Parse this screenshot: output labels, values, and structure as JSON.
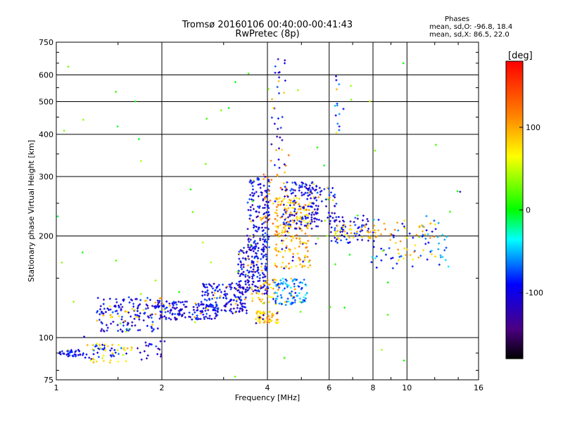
{
  "header": {
    "title_line1": "Tromsø 20160106 00:40:00-00:41:43",
    "title_line2": "RwPretec (8p)"
  },
  "stats": {
    "heading": "Phases",
    "line1": "mean, sd,O: -96.8, 18.4",
    "line2": "mean, sd,X: 86.5, 22.0"
  },
  "chart_data": {
    "type": "scatter",
    "x_scale": "log",
    "y_scale": "log",
    "xlabel": "Frequency [MHz]",
    "ylabel": "Stationary phase Virtual Height [km]",
    "xlim": [
      1,
      16
    ],
    "ylim": [
      75,
      750
    ],
    "x_ticks": [
      1,
      2,
      4,
      6,
      8,
      10,
      16
    ],
    "y_ticks": [
      75,
      100,
      200,
      300,
      400,
      500,
      600,
      750
    ],
    "grid": true,
    "colorbar": {
      "label": "[deg]",
      "range": [
        -180,
        180
      ],
      "ticks": [
        100,
        0,
        -100
      ],
      "colormap": "rainbow"
    },
    "clusters": [
      {
        "x": [
          1.0,
          1.2
        ],
        "y": [
          88,
          92
        ],
        "phase": -100,
        "n": 40
      },
      {
        "x": [
          1.2,
          1.55
        ],
        "y": [
          86,
          96
        ],
        "phase": -95,
        "n": 30
      },
      {
        "x": [
          1.25,
          1.65
        ],
        "y": [
          84,
          96
        ],
        "phase": 75,
        "n": 35
      },
      {
        "x": [
          1.7,
          2.05
        ],
        "y": [
          86,
          98
        ],
        "phase": -100,
        "n": 20
      },
      {
        "x": [
          1.3,
          2.0
        ],
        "y": [
          104,
          132
        ],
        "phase": -100,
        "n": 140
      },
      {
        "x": [
          1.4,
          1.8
        ],
        "y": [
          110,
          122
        ],
        "phase": 80,
        "n": 12
      },
      {
        "x": [
          1.9,
          2.9
        ],
        "y": [
          113,
          128
        ],
        "phase": -100,
        "n": 150
      },
      {
        "x": [
          2.6,
          3.5
        ],
        "y": [
          118,
          145
        ],
        "phase": -100,
        "n": 160
      },
      {
        "x": [
          3.3,
          4.0
        ],
        "y": [
          135,
          185
        ],
        "phase": -100,
        "n": 170
      },
      {
        "x": [
          3.5,
          4.05
        ],
        "y": [
          180,
          300
        ],
        "phase": -100,
        "n": 150
      },
      {
        "x": [
          3.7,
          4.3
        ],
        "y": [
          110,
          120
        ],
        "phase": 95,
        "n": 60
      },
      {
        "x": [
          3.6,
          4.3
        ],
        "y": [
          125,
          150
        ],
        "phase": 90,
        "n": 40
      },
      {
        "x": [
          3.9,
          4.6
        ],
        "y": [
          200,
          360
        ],
        "phase": 110,
        "n": 45
      },
      {
        "x": [
          4.2,
          5.2
        ],
        "y": [
          125,
          150
        ],
        "phase": -60,
        "n": 90
      },
      {
        "x": [
          4.2,
          5.3
        ],
        "y": [
          160,
          260
        ],
        "phase": 95,
        "n": 180
      },
      {
        "x": [
          4.4,
          5.6
        ],
        "y": [
          210,
          290
        ],
        "phase": -100,
        "n": 120
      },
      {
        "x": [
          5.2,
          6.3
        ],
        "y": [
          220,
          280
        ],
        "phase": -100,
        "n": 70
      },
      {
        "x": [
          6.0,
          7.8
        ],
        "y": [
          190,
          230
        ],
        "phase": -100,
        "n": 60
      },
      {
        "x": [
          6.2,
          8.5
        ],
        "y": [
          195,
          215
        ],
        "phase": 80,
        "n": 40
      },
      {
        "x": [
          7.8,
          13.5
        ],
        "y": [
          160,
          230
        ],
        "phase": -70,
        "n": 70
      },
      {
        "x": [
          8.5,
          12.5
        ],
        "y": [
          170,
          220
        ],
        "phase": 95,
        "n": 35
      },
      {
        "x": [
          4.1,
          4.5
        ],
        "y": [
          320,
          680
        ],
        "phase": -100,
        "n": 30
      },
      {
        "x": [
          6.2,
          6.6
        ],
        "y": [
          400,
          600
        ],
        "phase": -80,
        "n": 14
      },
      {
        "x": [
          1.0,
          16.0
        ],
        "y": [
          75,
          700
        ],
        "phase": 20,
        "n": 70
      }
    ]
  }
}
